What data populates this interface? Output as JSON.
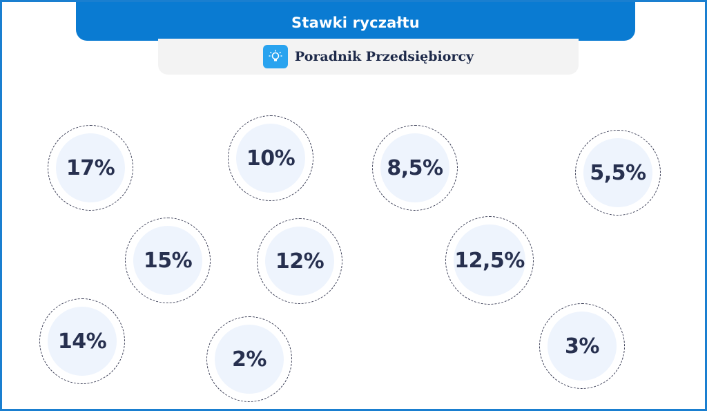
{
  "header": {
    "title": "Stawki ryczałtu"
  },
  "brand": {
    "name": "Poradnik Przedsiębiorcy",
    "icon": "lightbulb-icon",
    "icon_color": "#29a3ef"
  },
  "colors": {
    "accent": "#0a7bd2",
    "text": "#27304f",
    "badge_fill": "#eef4fd"
  },
  "rates": {
    "r17": "17%",
    "r10": "10%",
    "r8_5": "8,5%",
    "r5_5": "5,5%",
    "r15": "15%",
    "r12": "12%",
    "r12_5": "12,5%",
    "r14": "14%",
    "r2": "2%",
    "r3": "3%"
  }
}
